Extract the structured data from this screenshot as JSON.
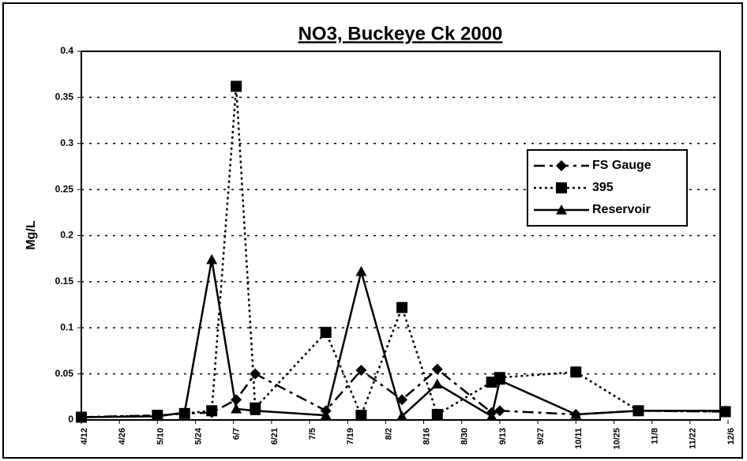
{
  "chart_data": {
    "type": "line",
    "title": "NO3, Buckeye Ck 2000",
    "y_label": "Mg/L",
    "x": [
      "4/12",
      "5/10",
      "5/20",
      "5/30",
      "6/8",
      "6/15",
      "7/11",
      "7/24",
      "8/8",
      "8/21",
      "9/10",
      "9/13",
      "10/11",
      "11/3",
      "12/5"
    ],
    "series": [
      {
        "name": "FS Gauge",
        "color": "#000",
        "dash": "14,6,4,6",
        "marker": "diamond",
        "values": [
          0.003,
          0.005,
          0.007,
          0.008,
          0.022,
          0.05,
          0.01,
          0.054,
          0.022,
          0.055,
          0.008,
          0.01,
          0.006,
          0.01,
          0.009
        ]
      },
      {
        "name": "395",
        "color": "#000",
        "dash": "3,4",
        "marker": "square",
        "values": [
          0.003,
          0.005,
          0.007,
          0.01,
          0.362,
          0.013,
          0.095,
          0.005,
          0.122,
          0.006,
          0.041,
          0.046,
          0.052,
          0.01,
          0.009
        ]
      },
      {
        "name": "Reservoir",
        "color": "#000",
        "dash": "none",
        "marker": "triangle",
        "values": [
          0.003,
          0.004,
          0.008,
          0.174,
          0.012,
          0.01,
          0.005,
          0.161,
          0.004,
          0.039,
          0.004,
          0.043,
          0.006,
          0.01,
          0.01
        ]
      }
    ],
    "xlim": [
      "4/12",
      "12/6"
    ],
    "xticks": [
      "4/12",
      "4/26",
      "5/10",
      "5/24",
      "6/7",
      "6/21",
      "7/5",
      "7/19",
      "8/2",
      "8/16",
      "8/30",
      "9/13",
      "9/27",
      "10/11",
      "10/25",
      "11/8",
      "11/22",
      "12/6"
    ],
    "ylim": [
      0,
      0.4
    ],
    "yticks": [
      0,
      0.05,
      0.1,
      0.15,
      0.2,
      0.25,
      0.3,
      0.35,
      0.4
    ],
    "grid": true,
    "legend": "right"
  }
}
